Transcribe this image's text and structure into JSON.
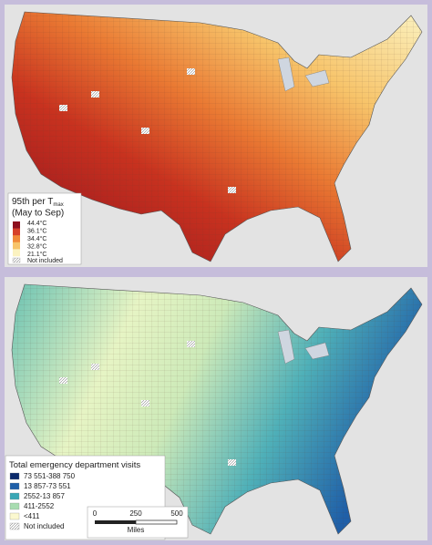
{
  "heat_map": {
    "legend": {
      "title": "95th per T",
      "title_subscript": "max",
      "subtitle": "(May to Sep)",
      "ticks": [
        "44.4°C",
        "36.1°C",
        "34.4°C",
        "32.8°C",
        "21.1°C"
      ],
      "colors": [
        "#8e0f1e",
        "#d6402a",
        "#f08a3a",
        "#f7c46a",
        "#fbf2c0"
      ],
      "not_included": "Not included"
    }
  },
  "visits_map": {
    "legend": {
      "title": "Total emergency department visits",
      "items": [
        {
          "label": "73 551-388 750",
          "color": "#0b2a6b"
        },
        {
          "label": "13 857-73 551",
          "color": "#1f5fa8"
        },
        {
          "label": "2552-13 857",
          "color": "#3aa7b5"
        },
        {
          "label": "411-2552",
          "color": "#a8dcb0"
        },
        {
          "label": "<411",
          "color": "#fbf8cf"
        }
      ],
      "not_included": "Not included"
    },
    "scale_bar": {
      "ticks": [
        "0",
        "250",
        "500"
      ],
      "unit": "Miles"
    }
  }
}
